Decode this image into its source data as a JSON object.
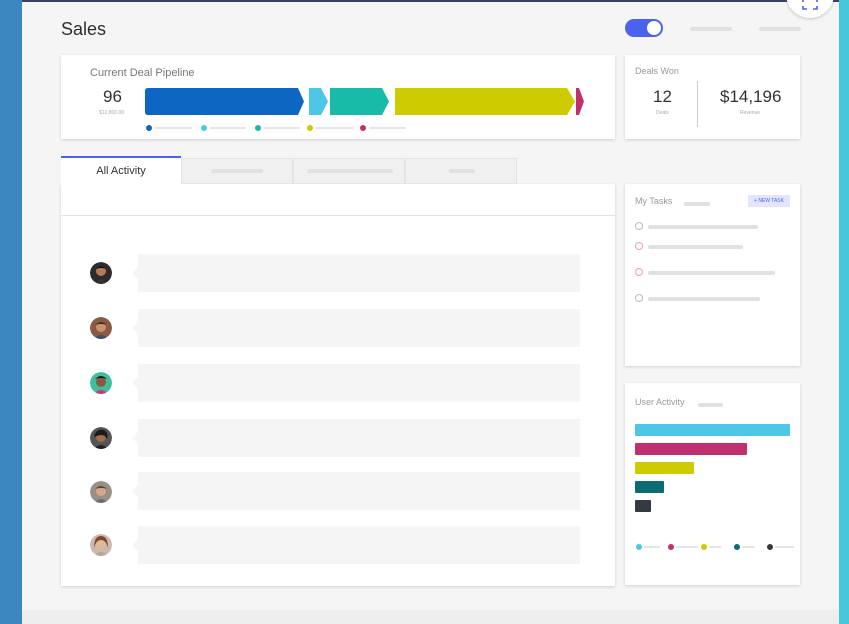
{
  "page": {
    "title": "Sales"
  },
  "pipeline": {
    "title": "Current Deal Pipeline",
    "deals": "96",
    "amount": "$12,800.00",
    "stages": [
      {
        "color": "#0d67c2"
      },
      {
        "color": "#4ec6e8"
      },
      {
        "color": "#17bba8"
      },
      {
        "color": "#cccc00"
      },
      {
        "color": "#c0306e"
      }
    ]
  },
  "deals_won": {
    "title": "Deals Won",
    "count": "12",
    "count_label": "Deals",
    "revenue": "$14,196",
    "revenue_label": "Revenue"
  },
  "tabs": {
    "active": "All Activity"
  },
  "tasks": {
    "title": "My Tasks",
    "new_task_label": "+ NEW TASK"
  },
  "user_activity": {
    "title": "User Activity",
    "bars": [
      {
        "color": "#4ec6e8",
        "value": 1.0
      },
      {
        "color": "#c0306e",
        "value": 0.72
      },
      {
        "color": "#cccc00",
        "value": 0.38
      },
      {
        "color": "#0a6b72",
        "value": 0.19
      },
      {
        "color": "#333a44",
        "value": 0.1
      }
    ]
  },
  "colors": {
    "accent": "#4b62f0"
  }
}
